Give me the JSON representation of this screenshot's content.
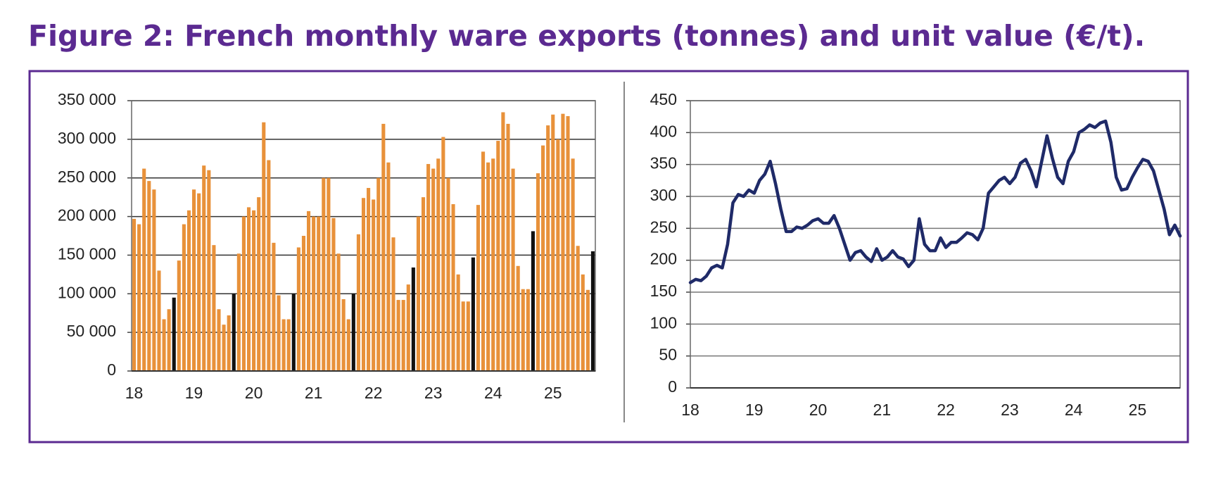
{
  "title": "Figure 2: French monthly ware exports (tonnes) and unit value (€/t).",
  "chart_data": [
    {
      "type": "bar",
      "categories": [
        "18",
        null,
        null,
        null,
        null,
        null,
        null,
        null,
        null,
        null,
        null,
        null,
        "19",
        null,
        null,
        null,
        null,
        null,
        null,
        null,
        null,
        null,
        null,
        null,
        "20",
        null,
        null,
        null,
        null,
        null,
        null,
        null,
        null,
        null,
        null,
        null,
        "21",
        null,
        null,
        null,
        null,
        null,
        null,
        null,
        null,
        null,
        null,
        null,
        "22",
        null,
        null,
        null,
        null,
        null,
        null,
        null,
        null,
        null,
        null,
        null,
        "23",
        null,
        null,
        null,
        null,
        null,
        null,
        null,
        null,
        null,
        null,
        null,
        "24",
        null,
        null,
        null,
        null,
        null,
        null,
        null,
        null,
        null,
        null,
        null,
        "25",
        null,
        null,
        null,
        null,
        null,
        null,
        null,
        null
      ],
      "values": [
        197000,
        190000,
        262000,
        246000,
        235000,
        130000,
        67000,
        80000,
        95000,
        143000,
        190000,
        208000,
        235000,
        230000,
        266000,
        260000,
        163000,
        80000,
        60000,
        72000,
        100000,
        152000,
        200000,
        212000,
        208000,
        225000,
        322000,
        273000,
        166000,
        98000,
        67000,
        67000,
        100000,
        160000,
        175000,
        207000,
        200000,
        200000,
        250000,
        250000,
        198000,
        152000,
        93000,
        67000,
        100000,
        177000,
        224000,
        237000,
        222000,
        250000,
        320000,
        270000,
        173000,
        92000,
        92000,
        112000,
        134000,
        200000,
        225000,
        268000,
        262000,
        275000,
        303000,
        250000,
        216000,
        125000,
        90000,
        90000,
        147000,
        215000,
        284000,
        270000,
        275000,
        298000,
        335000,
        320000,
        262000,
        136000,
        106000,
        106000,
        181000,
        256000,
        292000,
        318000,
        332000,
        300000,
        333000,
        330000,
        275000,
        162000,
        125000,
        105000,
        155000
      ],
      "colors": [
        "#e8913a",
        "#e8913a",
        "#e8913a",
        "#e8913a",
        "#e8913a",
        "#e8913a",
        "#e8913a",
        "#e8913a",
        "#111111",
        "#e8913a",
        "#e8913a",
        "#e8913a",
        "#e8913a",
        "#e8913a",
        "#e8913a",
        "#e8913a",
        "#e8913a",
        "#e8913a",
        "#e8913a",
        "#e8913a",
        "#111111",
        "#e8913a",
        "#e8913a",
        "#e8913a",
        "#e8913a",
        "#e8913a",
        "#e8913a",
        "#e8913a",
        "#e8913a",
        "#e8913a",
        "#e8913a",
        "#e8913a",
        "#111111",
        "#e8913a",
        "#e8913a",
        "#e8913a",
        "#e8913a",
        "#e8913a",
        "#e8913a",
        "#e8913a",
        "#e8913a",
        "#e8913a",
        "#e8913a",
        "#e8913a",
        "#111111",
        "#e8913a",
        "#e8913a",
        "#e8913a",
        "#e8913a",
        "#e8913a",
        "#e8913a",
        "#e8913a",
        "#e8913a",
        "#e8913a",
        "#e8913a",
        "#e8913a",
        "#111111",
        "#e8913a",
        "#e8913a",
        "#e8913a",
        "#e8913a",
        "#e8913a",
        "#e8913a",
        "#e8913a",
        "#e8913a",
        "#e8913a",
        "#e8913a",
        "#e8913a",
        "#111111",
        "#e8913a",
        "#e8913a",
        "#e8913a",
        "#e8913a",
        "#e8913a",
        "#e8913a",
        "#e8913a",
        "#e8913a",
        "#e8913a",
        "#e8913a",
        "#e8913a",
        "#111111",
        "#e8913a",
        "#e8913a",
        "#e8913a",
        "#e8913a",
        "#e8913a",
        "#e8913a",
        "#e8913a",
        "#e8913a",
        "#e8913a",
        "#e8913a",
        "#e8913a",
        "#111111"
      ],
      "ylim": [
        0,
        350000
      ],
      "yticks": [
        0,
        {
          "value": 50000,
          "label": "50 000"
        },
        {
          "value": 100000,
          "label": "100 000"
        },
        {
          "value": 150000,
          "label": "150 000"
        },
        {
          "value": 200000,
          "label": "200 000"
        },
        {
          "value": 250000,
          "label": "250 000"
        },
        {
          "value": 300000,
          "label": "300 000"
        },
        {
          "value": 350000,
          "label": "350 000"
        }
      ],
      "grid": true
    },
    {
      "type": "line",
      "categories": [
        "18",
        null,
        null,
        null,
        null,
        null,
        null,
        null,
        null,
        null,
        null,
        null,
        "19",
        null,
        null,
        null,
        null,
        null,
        null,
        null,
        null,
        null,
        null,
        null,
        "20",
        null,
        null,
        null,
        null,
        null,
        null,
        null,
        null,
        null,
        null,
        null,
        "21",
        null,
        null,
        null,
        null,
        null,
        null,
        null,
        null,
        null,
        null,
        null,
        "22",
        null,
        null,
        null,
        null,
        null,
        null,
        null,
        null,
        null,
        null,
        null,
        "23",
        null,
        null,
        null,
        null,
        null,
        null,
        null,
        null,
        null,
        null,
        null,
        "24",
        null,
        null,
        null,
        null,
        null,
        null,
        null,
        null,
        null,
        null,
        null,
        "25",
        null,
        null,
        null,
        null,
        null,
        null,
        null,
        null
      ],
      "values": [
        165,
        170,
        168,
        175,
        188,
        192,
        188,
        225,
        290,
        303,
        300,
        310,
        305,
        325,
        335,
        355,
        320,
        280,
        245,
        245,
        252,
        250,
        255,
        262,
        265,
        258,
        258,
        270,
        250,
        225,
        200,
        212,
        215,
        205,
        198,
        218,
        200,
        205,
        215,
        205,
        202,
        190,
        200,
        265,
        225,
        215,
        215,
        235,
        220,
        228,
        228,
        235,
        243,
        240,
        232,
        250,
        305,
        315,
        325,
        330,
        320,
        330,
        352,
        358,
        340,
        315,
        355,
        395,
        360,
        330,
        320,
        355,
        370,
        400,
        405,
        412,
        408,
        415,
        418,
        385,
        330,
        310,
        312,
        330,
        345,
        358,
        355,
        340,
        310,
        280,
        240,
        255,
        238
      ],
      "color": "#1f2a68",
      "ylim": [
        0,
        450
      ],
      "yticks": [
        0,
        50,
        100,
        150,
        200,
        250,
        300,
        350,
        400,
        450
      ],
      "grid": true
    }
  ]
}
